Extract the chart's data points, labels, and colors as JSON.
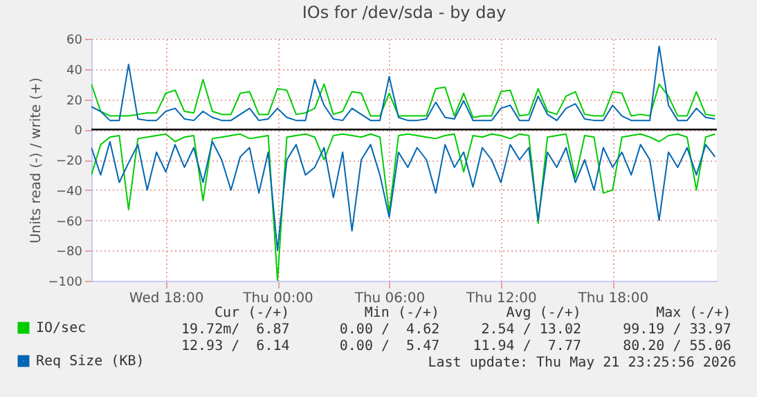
{
  "chart_data": {
    "type": "line",
    "title": "IOs for /dev/sda - by day",
    "ylabel": "Units read (-) / write (+)",
    "x": [
      "2026-05-20T14:00",
      "2026-05-20T14:30",
      "2026-05-20T15:00",
      "2026-05-20T15:30",
      "2026-05-20T16:00",
      "2026-05-20T16:30",
      "2026-05-20T17:00",
      "2026-05-20T17:30",
      "2026-05-20T18:00",
      "2026-05-20T18:30",
      "2026-05-20T19:00",
      "2026-05-20T19:30",
      "2026-05-20T20:00",
      "2026-05-20T20:30",
      "2026-05-20T21:00",
      "2026-05-20T21:30",
      "2026-05-20T22:00",
      "2026-05-20T22:30",
      "2026-05-20T23:00",
      "2026-05-20T23:30",
      "2026-05-21T00:00",
      "2026-05-21T00:30",
      "2026-05-21T01:00",
      "2026-05-21T01:30",
      "2026-05-21T02:00",
      "2026-05-21T02:30",
      "2026-05-21T03:00",
      "2026-05-21T03:30",
      "2026-05-21T04:00",
      "2026-05-21T04:30",
      "2026-05-21T05:00",
      "2026-05-21T05:30",
      "2026-05-21T06:00",
      "2026-05-21T06:30",
      "2026-05-21T07:00",
      "2026-05-21T07:30",
      "2026-05-21T08:00",
      "2026-05-21T08:30",
      "2026-05-21T09:00",
      "2026-05-21T09:30",
      "2026-05-21T10:00",
      "2026-05-21T10:30",
      "2026-05-21T11:00",
      "2026-05-21T11:30",
      "2026-05-21T12:00",
      "2026-05-21T12:30",
      "2026-05-21T13:00",
      "2026-05-21T13:30",
      "2026-05-21T14:00",
      "2026-05-21T14:30",
      "2026-05-21T15:00",
      "2026-05-21T15:30",
      "2026-05-21T16:00",
      "2026-05-21T16:30",
      "2026-05-21T17:00",
      "2026-05-21T17:30",
      "2026-05-21T18:00",
      "2026-05-21T18:30",
      "2026-05-21T19:00",
      "2026-05-21T19:30",
      "2026-05-21T20:00",
      "2026-05-21T20:30",
      "2026-05-21T21:00",
      "2026-05-21T21:30",
      "2026-05-21T22:00",
      "2026-05-21T22:30",
      "2026-05-21T23:00",
      "2026-05-21T23:30"
    ],
    "xlim": [
      "2026-05-20T14:00",
      "2026-05-21T23:36"
    ],
    "xticks": [
      {
        "value": "2026-05-20T18:00",
        "label": "Wed 18:00"
      },
      {
        "value": "2026-05-21T00:00",
        "label": "Thu 00:00"
      },
      {
        "value": "2026-05-21T06:00",
        "label": "Thu 06:00"
      },
      {
        "value": "2026-05-21T12:00",
        "label": "Thu 12:00"
      },
      {
        "value": "2026-05-21T18:00",
        "label": "Thu 18:00"
      }
    ],
    "ylim": [
      -100,
      60
    ],
    "yticks": [
      -100,
      -80,
      -60,
      -40,
      -20,
      0,
      20,
      40,
      60
    ],
    "grid": true,
    "legend": "bottom left",
    "series": [
      {
        "name": "IO/sec",
        "color": "#00cc00",
        "values": [
          30,
          12,
          9,
          9,
          9,
          10,
          11,
          11,
          24,
          26,
          12,
          11,
          33,
          12,
          10,
          10,
          24,
          25,
          10,
          10,
          27,
          26,
          10,
          11,
          14,
          30,
          10,
          12,
          25,
          24,
          9,
          9,
          24,
          9,
          9,
          9,
          9,
          27,
          28,
          9,
          24,
          8,
          9,
          9,
          25,
          26,
          9,
          10,
          27,
          12,
          10,
          22,
          25,
          10,
          9,
          9,
          25,
          24,
          9,
          10,
          9,
          30,
          22,
          9,
          9,
          25,
          10,
          9
        ]
      },
      {
        "color": "#00cc00",
        "values": [
          -30,
          -10,
          -5,
          -4,
          -53,
          -6,
          -5,
          -4,
          -3,
          -8,
          -5,
          -4,
          -47,
          -6,
          -5,
          -4,
          -3,
          -6,
          -5,
          -4,
          -100,
          -5,
          -4,
          -3,
          -5,
          -20,
          -4,
          -3,
          -4,
          -5,
          -3,
          -5,
          -55,
          -4,
          -3,
          -4,
          -5,
          -6,
          -4,
          -3,
          -28,
          -4,
          -5,
          -3,
          -4,
          -6,
          -3,
          -4,
          -62,
          -5,
          -4,
          -3,
          -32,
          -4,
          -5,
          -42,
          -40,
          -5,
          -4,
          -3,
          -5,
          -8,
          -4,
          -3,
          -5,
          -40,
          -5,
          -3
        ]
      },
      {
        "name": "Req Size (KB)",
        "color": "#0066b3",
        "values": [
          15,
          12,
          6,
          6,
          43,
          7,
          6,
          6,
          12,
          14,
          7,
          6,
          12,
          8,
          6,
          6,
          10,
          14,
          6,
          7,
          14,
          8,
          6,
          6,
          33,
          16,
          7,
          6,
          14,
          10,
          6,
          6,
          35,
          8,
          6,
          6,
          7,
          18,
          8,
          7,
          19,
          6,
          6,
          6,
          14,
          16,
          6,
          6,
          22,
          10,
          6,
          14,
          17,
          7,
          6,
          6,
          16,
          9,
          6,
          6,
          6,
          55,
          16,
          6,
          6,
          14,
          8,
          7
        ]
      },
      {
        "color": "#0066b3",
        "values": [
          -12,
          -30,
          -8,
          -35,
          -22,
          -10,
          -40,
          -15,
          -28,
          -10,
          -25,
          -12,
          -35,
          -8,
          -20,
          -40,
          -18,
          -12,
          -42,
          -15,
          -80,
          -20,
          -10,
          -30,
          -25,
          -12,
          -45,
          -15,
          -67,
          -20,
          -10,
          -30,
          -58,
          -15,
          -25,
          -12,
          -20,
          -42,
          -10,
          -25,
          -15,
          -38,
          -12,
          -20,
          -35,
          -10,
          -20,
          -12,
          -60,
          -15,
          -25,
          -12,
          -35,
          -20,
          -40,
          -12,
          -25,
          -15,
          -30,
          -10,
          -20,
          -60,
          -15,
          -25,
          -12,
          -30,
          -10,
          -18
        ]
      }
    ],
    "ref_lines": [
      {
        "axis": "y",
        "value": 0,
        "color": "#000000"
      }
    ],
    "annotations": [
      "Cur (-/+)         Min (-/+)        Avg (-/+)         Max (-/+)",
      "19.72m/  6.87      0.00 /  4.62     2.54 / 13.02     99.19 / 33.97",
      "12.93 /  6.14      0.00 /  5.47    11.94 /  7.77     80.20 / 55.06",
      "Last update: Thu May 21 23:25:56 2026"
    ]
  }
}
